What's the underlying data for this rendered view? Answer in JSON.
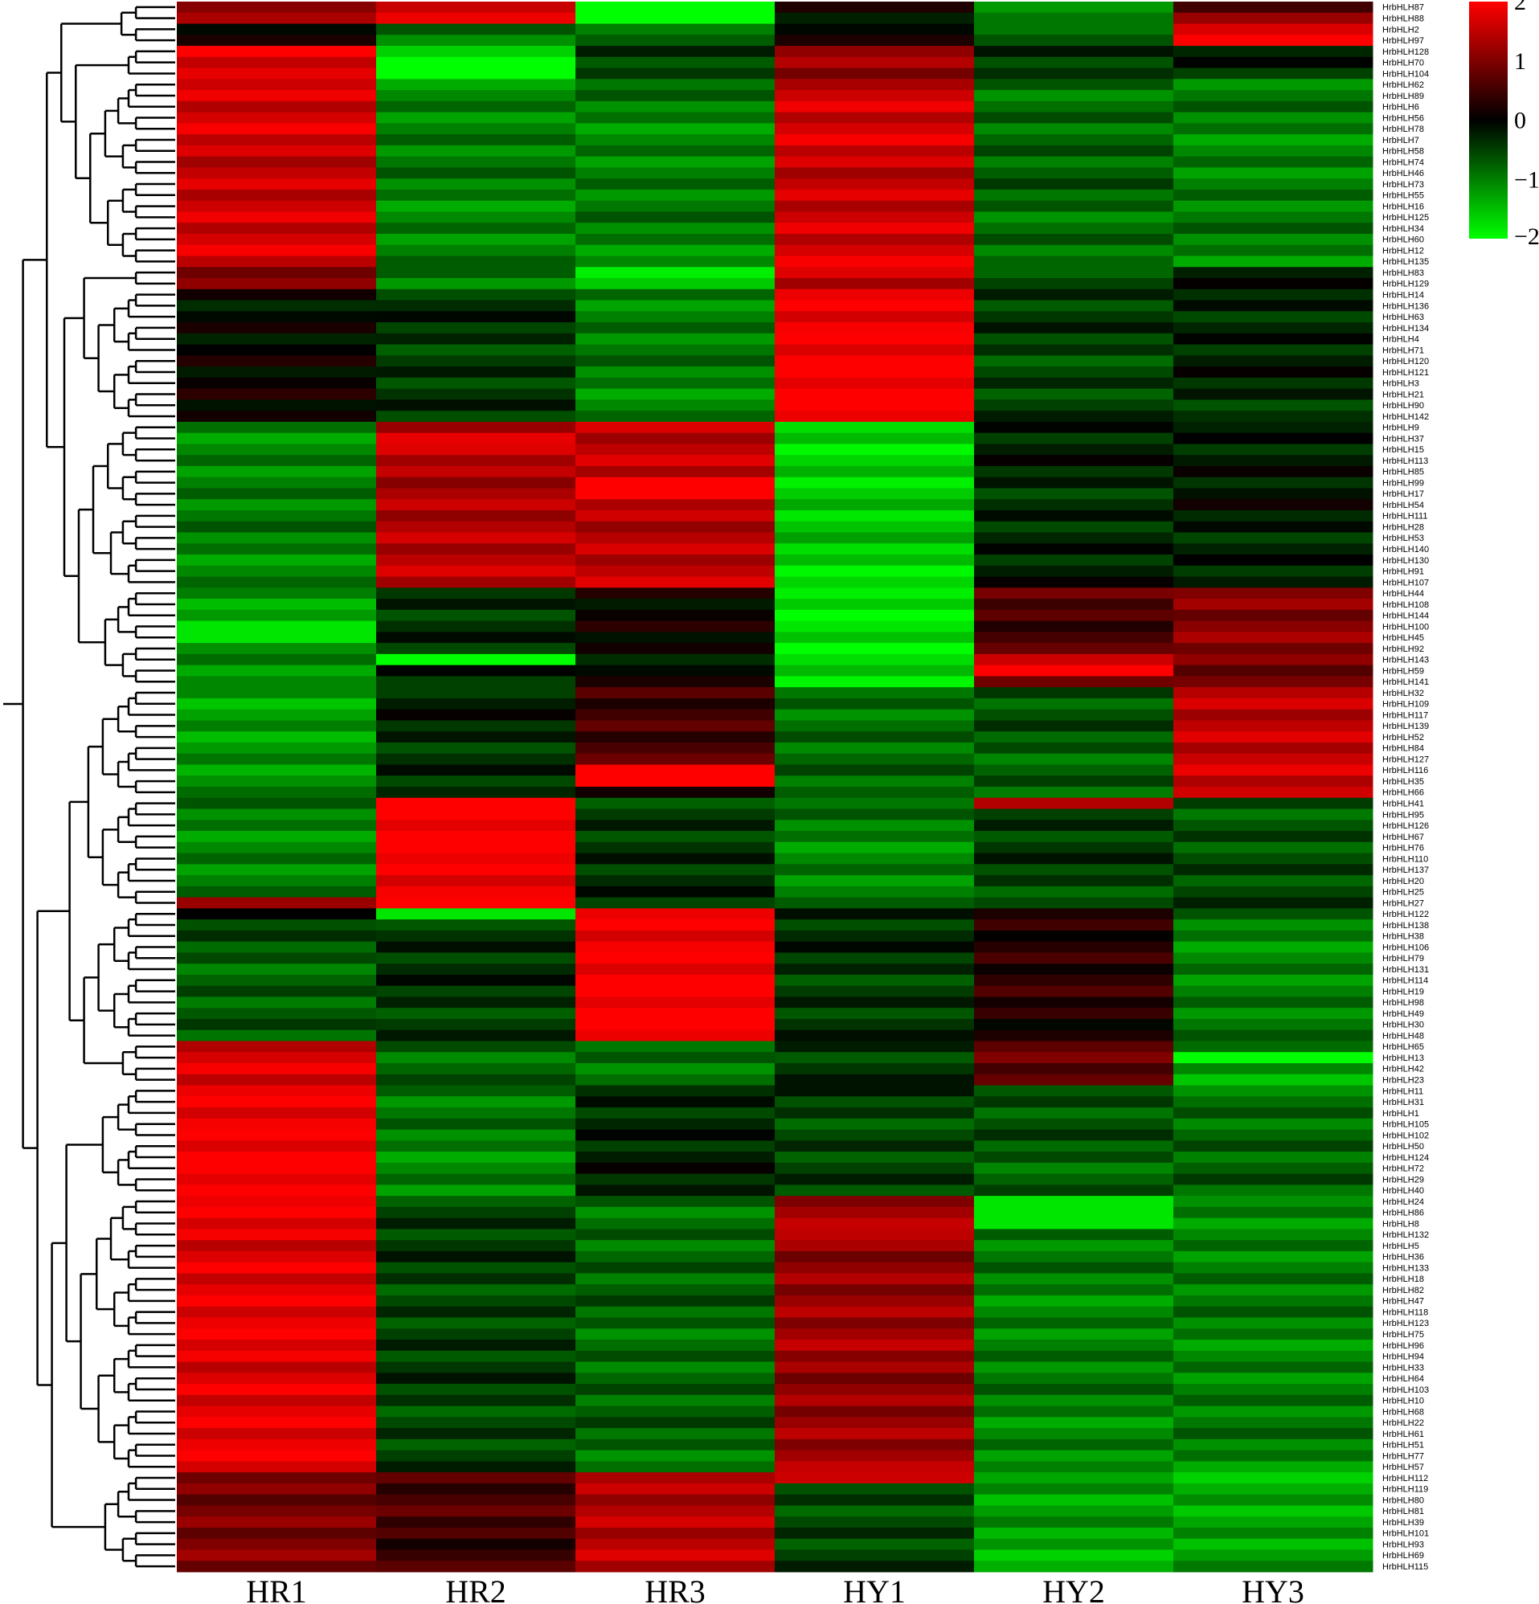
{
  "chart_data": {
    "type": "heatmap",
    "columns": [
      "HR1",
      "HR2",
      "HR3",
      "HY1",
      "HY2",
      "HY3"
    ],
    "rows": [
      "HrbHLH87",
      "HrbHLH88",
      "HrbHLH2",
      "HrbHLH97",
      "HrbHLH128",
      "HrbHLH70",
      "HrbHLH104",
      "HrbHLH62",
      "HrbHLH89",
      "HrbHLH6",
      "HrbHLH56",
      "HrbHLH78",
      "HrbHLH7",
      "HrbHLH58",
      "HrbHLH74",
      "HrbHLH46",
      "HrbHLH73",
      "HrbHLH55",
      "HrbHLH16",
      "HrbHLH125",
      "HrbHLH34",
      "HrbHLH60",
      "HrbHLH12",
      "HrbHLH135",
      "HrbHLH83",
      "HrbHLH129",
      "HrbHLH14",
      "HrbHLH136",
      "HrbHLH63",
      "HrbHLH134",
      "HrbHLH4",
      "HrbHLH71",
      "HrbHLH120",
      "HrbHLH121",
      "HrbHLH3",
      "HrbHLH21",
      "HrbHLH90",
      "HrbHLH142",
      "HrbHLH9",
      "HrbHLH37",
      "HrbHLH15",
      "HrbHLH113",
      "HrbHLH85",
      "HrbHLH99",
      "HrbHLH17",
      "HrbHLH54",
      "HrbHLH111",
      "HrbHLH28",
      "HrbHLH53",
      "HrbHLH140",
      "HrbHLH130",
      "HrbHLH91",
      "HrbHLH107",
      "HrbHLH44",
      "HrbHLH108",
      "HrbHLH144",
      "HrbHLH100",
      "HrbHLH45",
      "HrbHLH92",
      "HrbHLH143",
      "HrbHLH59",
      "HrbHLH141",
      "HrbHLH32",
      "HrbHLH109",
      "HrbHLH117",
      "HrbHLH139",
      "HrbHLH52",
      "HrbHLH84",
      "HrbHLH127",
      "HrbHLH116",
      "HrbHLH35",
      "HrbHLH66",
      "HrbHLH41",
      "HrbHLH95",
      "HrbHLH126",
      "HrbHLH67",
      "HrbHLH76",
      "HrbHLH110",
      "HrbHLH137",
      "HrbHLH20",
      "HrbHLH25",
      "HrbHLH27",
      "HrbHLH122",
      "HrbHLH138",
      "HrbHLH38",
      "HrbHLH106",
      "HrbHLH79",
      "HrbHLH131",
      "HrbHLH114",
      "HrbHLH19",
      "HrbHLH98",
      "HrbHLH49",
      "HrbHLH30",
      "HrbHLH48",
      "HrbHLH65",
      "HrbHLH13",
      "HrbHLH42",
      "HrbHLH23",
      "HrbHLH11",
      "HrbHLH31",
      "HrbHLH1",
      "HrbHLH105",
      "HrbHLH102",
      "HrbHLH50",
      "HrbHLH124",
      "HrbHLH72",
      "HrbHLH29",
      "HrbHLH40",
      "HrbHLH24",
      "HrbHLH86",
      "HrbHLH8",
      "HrbHLH132",
      "HrbHLH5",
      "HrbHLH36",
      "HrbHLH133",
      "HrbHLH18",
      "HrbHLH82",
      "HrbHLH47",
      "HrbHLH118",
      "HrbHLH123",
      "HrbHLH75",
      "HrbHLH96",
      "HrbHLH94",
      "HrbHLH33",
      "HrbHLH64",
      "HrbHLH103",
      "HrbHLH10",
      "HrbHLH68",
      "HrbHLH22",
      "HrbHLH61",
      "HrbHLH51",
      "HrbHLH77",
      "HrbHLH57",
      "HrbHLH112",
      "HrbHLH119",
      "HrbHLH80",
      "HrbHLH81",
      "HrbHLH39",
      "HrbHLH101",
      "HrbHLH93",
      "HrbHLH69",
      "HrbHLH115"
    ],
    "blocks": [
      {
        "start": 0,
        "len": 2,
        "values": [
          1.4,
          1.5,
          -2,
          0.1,
          -1,
          0.3
        ]
      },
      {
        "start": 2,
        "len": 2,
        "values": [
          0,
          -1,
          -1,
          0.3,
          -1,
          2
        ]
      },
      {
        "start": 4,
        "len": 3,
        "values": [
          1.8,
          -1.5,
          -0.5,
          1.2,
          -0.5,
          -0.3
        ]
      },
      {
        "start": 7,
        "len": 17,
        "values": [
          1.6,
          -1,
          -1,
          1.6,
          -0.8,
          -1
        ]
      },
      {
        "start": 24,
        "len": 2,
        "values": [
          1,
          -1,
          -1.8,
          1.4,
          -0.8,
          0.1
        ]
      },
      {
        "start": 26,
        "len": 12,
        "values": [
          0,
          -0.4,
          -1,
          2,
          -0.5,
          -0.3
        ]
      },
      {
        "start": 38,
        "len": 15,
        "values": [
          -1,
          1.4,
          1.5,
          -1.6,
          -0.3,
          -0.2
        ]
      },
      {
        "start": 53,
        "len": 9,
        "values": [
          -1.2,
          -0.3,
          0,
          -1.8,
          0.6,
          1
        ]
      },
      {
        "start": 62,
        "len": 10,
        "values": [
          -1.2,
          -0.3,
          0.5,
          -0.8,
          -0.7,
          1.5
        ]
      },
      {
        "start": 72,
        "len": 10,
        "values": [
          -1,
          2,
          -0.4,
          -1,
          -0.5,
          -0.6
        ]
      },
      {
        "start": 82,
        "len": 12,
        "values": [
          -0.7,
          -0.4,
          2,
          -0.4,
          0.3,
          -1
        ]
      },
      {
        "start": 94,
        "len": 4,
        "values": [
          1.6,
          -0.8,
          -0.8,
          -0.5,
          0.8,
          -1.2
        ]
      },
      {
        "start": 98,
        "len": 10,
        "values": [
          2,
          -1,
          -0.3,
          -0.5,
          -0.7,
          -0.8
        ]
      },
      {
        "start": 108,
        "len": 25,
        "values": [
          1.8,
          -0.5,
          -0.8,
          1.2,
          -1,
          -1
        ]
      },
      {
        "start": 133,
        "len": 10,
        "values": [
          1,
          0.5,
          1.4,
          -0.5,
          -1.3,
          -1.3
        ]
      }
    ],
    "overrides": [
      {
        "row": 43,
        "col": 2,
        "value": 2
      },
      {
        "row": 44,
        "col": 2,
        "value": 2
      },
      {
        "row": 39,
        "col": 1,
        "value": 1.8
      },
      {
        "row": 69,
        "col": 2,
        "value": 2
      },
      {
        "row": 70,
        "col": 2,
        "value": 2
      },
      {
        "row": 75,
        "col": 1,
        "value": 2.2
      },
      {
        "row": 60,
        "col": 4,
        "value": 2
      },
      {
        "row": 59,
        "col": 4,
        "value": 1.6
      },
      {
        "row": 56,
        "col": 0,
        "value": -1.8
      },
      {
        "row": 57,
        "col": 0,
        "value": -1.8
      },
      {
        "row": 59,
        "col": 1,
        "value": -2
      },
      {
        "row": 82,
        "col": 1,
        "value": -1.8
      },
      {
        "row": 82,
        "col": 0,
        "value": 0
      },
      {
        "row": 81,
        "col": 0,
        "value": 1.2
      },
      {
        "row": 72,
        "col": 4,
        "value": 1.4
      },
      {
        "row": 95,
        "col": 5,
        "value": -2
      },
      {
        "row": 108,
        "col": 4,
        "value": -1.8
      },
      {
        "row": 109,
        "col": 4,
        "value": -1.8
      },
      {
        "row": 110,
        "col": 4,
        "value": -1.8
      },
      {
        "row": 111,
        "col": 3,
        "value": 1.5
      },
      {
        "row": 133,
        "col": 3,
        "value": 1.6
      },
      {
        "row": 1,
        "col": 5,
        "value": 1.2
      },
      {
        "row": 3,
        "col": 5,
        "value": 2.1
      },
      {
        "row": 5,
        "col": 1,
        "value": -2
      },
      {
        "row": 6,
        "col": 1,
        "value": -2
      }
    ],
    "color_scale": {
      "min": -2,
      "max": 2,
      "low_color": "#00ff00",
      "mid_color": "#000000",
      "high_color": "#ff0000",
      "ticks": [
        "2",
        "1",
        "0",
        "−1",
        "−2"
      ]
    },
    "row_dendrogram": true,
    "legend_position": "top-right"
  }
}
